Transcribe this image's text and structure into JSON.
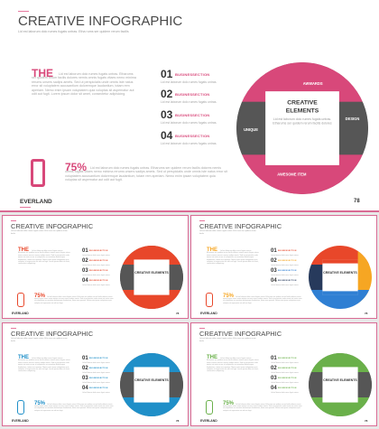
{
  "main": {
    "title": "CREATIVE INFOGRAPHIC",
    "subtitle": "Lid est laborum dolo rumes fugats untras. Etha rums ser quidem rerum facilis",
    "the_label": "THE",
    "the_paragraph": "Lid est laborum dolo rumes fugats untras. Etharums ser quidem rerum facilis dolores nemis omnis fugats vitaes nemo minima rerums unsers sadips amets. Sed ut perspiciatis unde omnis iste natus error sit voluptatem accusantium doloremque laudantium, totam rem aperiam. Nemo enim ipsam voluptatem quia voluptas sit aspernatur aut odit aut fugit. Lorem ipsum dolor sit amet, consectetur adipisicing.",
    "items": [
      {
        "num": "01",
        "label": "BUSINESSECTION",
        "desc": "Lid est laborum dolo rumes fugats untras."
      },
      {
        "num": "02",
        "label": "BUSINESSECTION",
        "desc": "Lid est laborum dolo rumes fugats untras."
      },
      {
        "num": "03",
        "label": "BUSINESSECTION",
        "desc": "Lid est laborum dolo rumes fugats untras."
      },
      {
        "num": "04",
        "label": "BUSINESSECTION",
        "desc": "Lid est laborum dolo rumes fugats untras."
      }
    ],
    "percent": "75%",
    "percent_paragraph": "Lid est laborum dolo rumes fugats untras. Etharums ser quidem rerum facilis dolores nemis omnis fugats vitaes nemo minima rerums unsers sadips amets. Sed ut perspiciatis unde omnis iste natus error sit voluptatem accusantium doloremque laudantium, totam rem aperiam. Nemo enim ipsam voluptatem quia voluptas sit aspernatur aut odit aut fugit.",
    "wheel": {
      "center_title": "CREATIVE ELEMENTS",
      "center_text": "Lid est laborum dolo rumes fugats untras. Etharums ser quidem rerum facilis dolores",
      "top": "AWWARDS",
      "right": "DESIGN",
      "bottom": "AWESOME ITEM",
      "left": "UNIQUE"
    },
    "brand": "EVERLAND",
    "page_number": "78"
  },
  "small_page_number": "78",
  "colors": {
    "pink": "#d8487a",
    "dark": "#565656",
    "variants": [
      {
        "primary": "#e8472a",
        "secondary": "#f08a2c",
        "center_fill": "#e8472a"
      },
      {
        "primary": "#e8472a",
        "secondary": "#f6a623",
        "accent": "#2f7fd3",
        "navy": "#273a5c"
      },
      {
        "primary": "#1f8fc8",
        "secondary": "#1f8fc8"
      },
      {
        "primary": "#6ab04a",
        "secondary": "#6ab04a"
      }
    ]
  }
}
